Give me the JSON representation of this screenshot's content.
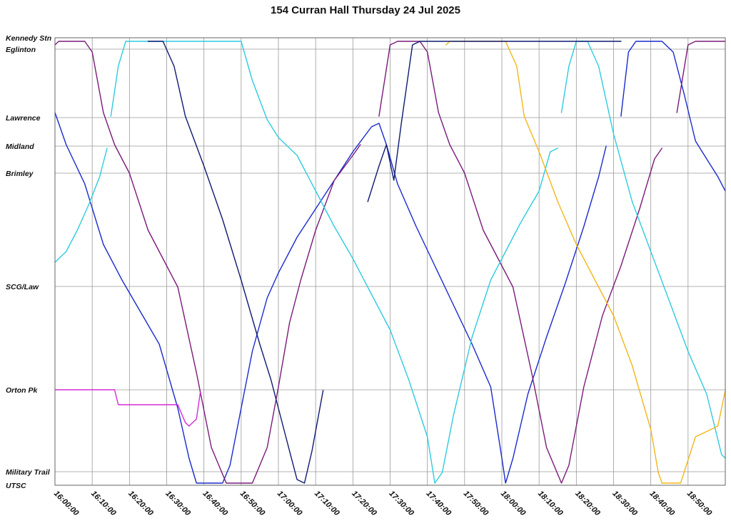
{
  "chart_data": {
    "type": "line",
    "title": "154 Curran Hall Thursday 24 Jul 2025",
    "xlabel": "",
    "ylabel": "",
    "grid": true,
    "x_ticks": [
      "16:00:00",
      "16:10:00",
      "16:20:00",
      "16:30:00",
      "16:40:00",
      "16:50:00",
      "17:00:00",
      "17:10:00",
      "17:20:00",
      "17:30:00",
      "17:40:00",
      "17:50:00",
      "18:00:00",
      "18:10:00",
      "18:20:00",
      "18:30:00",
      "18:40:00",
      "18:50:00"
    ],
    "xlim": [
      "16:00:00",
      "19:00:00"
    ],
    "stops": [
      {
        "name": "Kennedy Stn",
        "pos": 0
      },
      {
        "name": "Eglinton",
        "pos": 16
      },
      {
        "name": "Lawrence",
        "pos": 112
      },
      {
        "name": "Midland",
        "pos": 152
      },
      {
        "name": "Brimley",
        "pos": 190
      },
      {
        "name": "SCG/Law",
        "pos": 349
      },
      {
        "name": "Orton Pk",
        "pos": 494
      },
      {
        "name": "Military Trail",
        "pos": 609
      },
      {
        "name": "UTSC",
        "pos": 628
      }
    ],
    "series": [
      {
        "color": "#1a2acc",
        "points": [
          [
            "16:00:00",
            105
          ],
          [
            "16:03:00",
            150
          ],
          [
            "16:08:00",
            205
          ],
          [
            "16:13:00",
            290
          ],
          [
            "16:18:00",
            340
          ],
          [
            "16:23:00",
            385
          ],
          [
            "16:28:00",
            430
          ],
          [
            "16:33:00",
            520
          ],
          [
            "16:36:00",
            590
          ],
          [
            "16:38:00",
            625
          ],
          [
            "16:45:00",
            625
          ],
          [
            "16:47:00",
            600
          ],
          [
            "16:50:00",
            520
          ],
          [
            "16:53:00",
            440
          ],
          [
            "16:57:00",
            365
          ],
          [
            "17:00:00",
            330
          ],
          [
            "17:05:00",
            280
          ],
          [
            "17:10:00",
            240
          ],
          [
            "17:15:00",
            200
          ],
          [
            "17:20:00",
            160
          ],
          [
            "17:25:00",
            125
          ],
          [
            "17:27:00",
            120
          ],
          [
            "17:29:00",
            150
          ],
          [
            "17:32:00",
            205
          ],
          [
            "17:37:00",
            265
          ],
          [
            "17:42:00",
            320
          ],
          [
            "17:47:00",
            375
          ],
          [
            "17:52:00",
            430
          ],
          [
            "17:57:00",
            490
          ],
          [
            "18:00:00",
            590
          ],
          [
            "18:01:00",
            625
          ],
          [
            "18:03:00",
            590
          ],
          [
            "18:07:00",
            500
          ],
          [
            "18:12:00",
            420
          ],
          [
            "18:17:00",
            345
          ],
          [
            "18:22:00",
            265
          ],
          [
            "18:26:00",
            195
          ],
          [
            "18:28:00",
            152
          ]
        ]
      },
      {
        "color": "#1a2acc",
        "points": [
          [
            "18:32:00",
            110
          ],
          [
            "18:34:00",
            20
          ],
          [
            "18:36:00",
            5
          ],
          [
            "18:43:00",
            5
          ],
          [
            "18:46:00",
            20
          ],
          [
            "18:49:00",
            80
          ],
          [
            "18:52:00",
            145
          ],
          [
            "18:55:00",
            170
          ],
          [
            "18:58:00",
            195
          ],
          [
            "19:00:00",
            215
          ]
        ]
      },
      {
        "color": "#7a1a7a",
        "points": [
          [
            "16:00:00",
            10
          ],
          [
            "16:01:00",
            5
          ],
          [
            "16:08:00",
            5
          ],
          [
            "16:10:00",
            20
          ],
          [
            "16:13:00",
            105
          ],
          [
            "16:16:00",
            150
          ],
          [
            "16:20:00",
            190
          ],
          [
            "16:25:00",
            270
          ],
          [
            "16:30:00",
            320
          ],
          [
            "16:33:00",
            350
          ],
          [
            "16:38:00",
            470
          ],
          [
            "16:42:00",
            575
          ],
          [
            "16:46:00",
            625
          ],
          [
            "16:53:00",
            625
          ],
          [
            "16:57:00",
            575
          ],
          [
            "17:00:00",
            490
          ],
          [
            "17:03:00",
            400
          ],
          [
            "17:06:00",
            340
          ],
          [
            "17:10:00",
            270
          ],
          [
            "17:15:00",
            200
          ],
          [
            "17:20:00",
            165
          ],
          [
            "17:22:00",
            150
          ]
        ]
      },
      {
        "color": "#7a1a7a",
        "points": [
          [
            "17:27:00",
            110
          ],
          [
            "17:30:00",
            10
          ],
          [
            "17:32:00",
            5
          ],
          [
            "17:38:00",
            5
          ],
          [
            "17:40:00",
            20
          ],
          [
            "17:43:00",
            105
          ],
          [
            "17:46:00",
            150
          ],
          [
            "17:50:00",
            190
          ],
          [
            "17:55:00",
            270
          ],
          [
            "18:00:00",
            320
          ],
          [
            "18:03:00",
            350
          ],
          [
            "18:08:00",
            470
          ],
          [
            "18:12:00",
            575
          ],
          [
            "18:16:00",
            625
          ],
          [
            "18:18:00",
            600
          ],
          [
            "18:22:00",
            490
          ],
          [
            "18:27:00",
            390
          ],
          [
            "18:32:00",
            320
          ],
          [
            "18:37:00",
            240
          ],
          [
            "18:41:00",
            170
          ],
          [
            "18:43:00",
            155
          ]
        ]
      },
      {
        "color": "#7a1a7a",
        "points": [
          [
            "18:47:00",
            105
          ],
          [
            "18:50:00",
            10
          ],
          [
            "18:52:00",
            5
          ],
          [
            "19:00:00",
            5
          ]
        ]
      },
      {
        "color": "#2ecbe0",
        "points": [
          [
            "16:00:00",
            315
          ],
          [
            "16:03:00",
            300
          ],
          [
            "16:06:00",
            270
          ],
          [
            "16:09:00",
            235
          ],
          [
            "16:12:00",
            195
          ],
          [
            "16:14:00",
            155
          ]
        ]
      },
      {
        "color": "#2ecbe0",
        "points": [
          [
            "16:15:00",
            110
          ],
          [
            "16:17:00",
            40
          ],
          [
            "16:19:00",
            5
          ],
          [
            "16:33:00",
            5
          ],
          [
            "16:50:00",
            5
          ],
          [
            "16:53:00",
            60
          ],
          [
            "16:57:00",
            115
          ],
          [
            "17:00:00",
            140
          ],
          [
            "17:05:00",
            165
          ],
          [
            "17:10:00",
            215
          ],
          [
            "17:15:00",
            265
          ],
          [
            "17:20:00",
            310
          ],
          [
            "17:25:00",
            360
          ],
          [
            "17:30:00",
            410
          ],
          [
            "17:35:00",
            480
          ],
          [
            "17:40:00",
            560
          ],
          [
            "17:42:00",
            625
          ],
          [
            "17:44:00",
            610
          ],
          [
            "17:47:00",
            530
          ],
          [
            "17:52:00",
            420
          ],
          [
            "17:57:00",
            340
          ],
          [
            "18:00:00",
            310
          ],
          [
            "18:05:00",
            260
          ],
          [
            "18:10:00",
            215
          ],
          [
            "18:13:00",
            160
          ],
          [
            "18:15:00",
            155
          ]
        ]
      },
      {
        "color": "#2ecbe0",
        "points": [
          [
            "18:16:00",
            105
          ],
          [
            "18:18:00",
            40
          ],
          [
            "18:20:00",
            5
          ],
          [
            "18:23:00",
            5
          ],
          [
            "18:26:00",
            40
          ],
          [
            "18:30:00",
            135
          ],
          [
            "18:35:00",
            230
          ],
          [
            "18:40:00",
            300
          ],
          [
            "18:45:00",
            370
          ],
          [
            "18:50:00",
            440
          ],
          [
            "18:55:00",
            500
          ],
          [
            "18:59:00",
            585
          ],
          [
            "19:00:00",
            590
          ]
        ]
      },
      {
        "color": "#f2b619",
        "points": [
          [
            "17:45:00",
            10
          ],
          [
            "17:46:00",
            5
          ],
          [
            "18:01:00",
            5
          ],
          [
            "18:04:00",
            40
          ],
          [
            "18:06:00",
            110
          ],
          [
            "18:10:00",
            160
          ],
          [
            "18:15:00",
            230
          ],
          [
            "18:20:00",
            290
          ],
          [
            "18:25:00",
            340
          ],
          [
            "18:30:00",
            390
          ],
          [
            "18:35:00",
            460
          ],
          [
            "18:40:00",
            550
          ],
          [
            "18:42:00",
            610
          ],
          [
            "18:43:00",
            625
          ],
          [
            "18:48:00",
            625
          ],
          [
            "18:52:00",
            560
          ],
          [
            "18:58:00",
            545
          ],
          [
            "19:00:00",
            495
          ]
        ]
      },
      {
        "color": "#0e1a70",
        "points": [
          [
            "16:25:00",
            5
          ],
          [
            "16:29:00",
            5
          ],
          [
            "16:32:00",
            40
          ],
          [
            "16:35:00",
            110
          ],
          [
            "16:40:00",
            180
          ],
          [
            "16:45:00",
            255
          ],
          [
            "16:50:00",
            340
          ],
          [
            "16:55:00",
            430
          ],
          [
            "16:58:00",
            480
          ],
          [
            "17:02:00",
            560
          ],
          [
            "17:05:00",
            620
          ],
          [
            "17:07:00",
            625
          ],
          [
            "17:09:00",
            580
          ],
          [
            "17:12:00",
            495
          ]
        ]
      },
      {
        "color": "#0e1a70",
        "points": [
          [
            "17:24:00",
            230
          ],
          [
            "17:27:00",
            180
          ],
          [
            "17:29:00",
            150
          ],
          [
            "17:31:00",
            200
          ],
          [
            "17:33:00",
            120
          ],
          [
            "17:36:00",
            10
          ],
          [
            "17:38:00",
            5
          ],
          [
            "18:32:00",
            5
          ]
        ]
      },
      {
        "color": "#d42ad4",
        "points": [
          [
            "16:00:00",
            494
          ],
          [
            "16:16:00",
            494
          ],
          [
            "16:17:00",
            515
          ],
          [
            "16:33:00",
            515
          ],
          [
            "16:35:00",
            540
          ],
          [
            "16:36:00",
            545
          ],
          [
            "16:38:00",
            535
          ],
          [
            "16:39:00",
            498
          ]
        ]
      }
    ]
  }
}
